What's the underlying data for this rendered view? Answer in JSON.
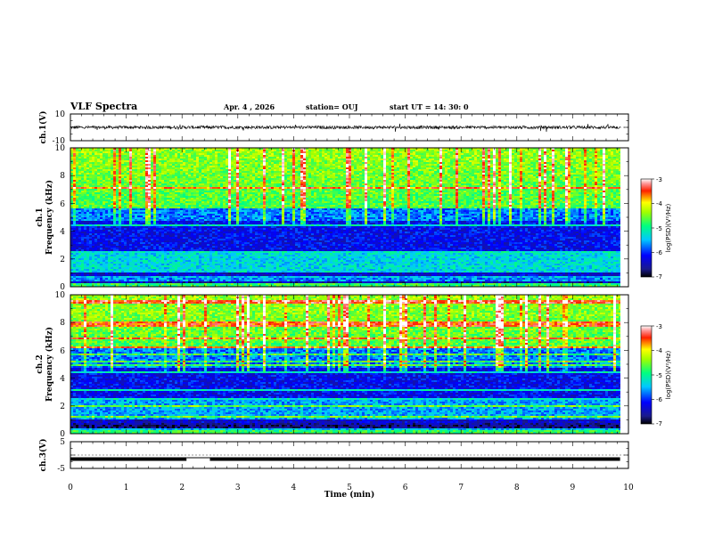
{
  "header": {
    "title": "VLF Spectra",
    "date": "Apr. 4 , 2026",
    "station": "station= OUJ",
    "start": "start UT =  14: 30: 0"
  },
  "chart_data": [
    {
      "id": "ch1-waveform",
      "type": "line",
      "ylabel": "ch.1(V)",
      "ylim": [
        -10,
        10
      ],
      "ytick_labels": [
        "10",
        "-10"
      ],
      "xlim": [
        0,
        10
      ],
      "data_end": 9.85,
      "baseline": 0,
      "noise_amplitude": 1.2
    },
    {
      "id": "ch1-spectrogram",
      "type": "heatmap",
      "ylabel_line1": "ch.1",
      "ylabel_line2": "Frequency (kHz)",
      "ylim": [
        0,
        10
      ],
      "ytick_labels": [
        "10",
        "8",
        "6",
        "4",
        "2",
        "0"
      ],
      "xlim": [
        0,
        10
      ],
      "data_end": 9.85,
      "colorbar": {
        "label": "log(PSD)(V²/Hz)",
        "range": [
          -7,
          -3
        ],
        "tick_labels": [
          "-3",
          "-4",
          "-5",
          "-6",
          "-7"
        ]
      }
    },
    {
      "id": "ch2-spectrogram",
      "type": "heatmap",
      "ylabel_line1": "ch.2",
      "ylabel_line2": "Frequency (kHz)",
      "ylim": [
        0,
        10
      ],
      "ytick_labels": [
        "10",
        "8",
        "6",
        "4",
        "2",
        "0"
      ],
      "xlim": [
        0,
        10
      ],
      "data_end": 9.85,
      "colorbar": {
        "label": "log(PSD)(V²/Hz)",
        "range": [
          -7,
          -3
        ],
        "tick_labels": [
          "-3",
          "-4",
          "-5",
          "-6",
          "-7"
        ]
      }
    },
    {
      "id": "ch3-waveform",
      "type": "line",
      "ylabel": "ch.3(V)",
      "ylim": [
        -5,
        5
      ],
      "ytick_labels": [
        "5",
        "-5"
      ],
      "xlim": [
        0,
        10
      ],
      "data_end": 9.85,
      "baseline": -1.5,
      "gap": [
        2.08,
        2.5
      ]
    }
  ],
  "xaxis": {
    "title": "Time (min)",
    "tick_labels": [
      "0",
      "1",
      "2",
      "3",
      "4",
      "5",
      "6",
      "7",
      "8",
      "9",
      "10"
    ]
  },
  "colors": {
    "line": "#000000",
    "background": "#ffffff"
  }
}
